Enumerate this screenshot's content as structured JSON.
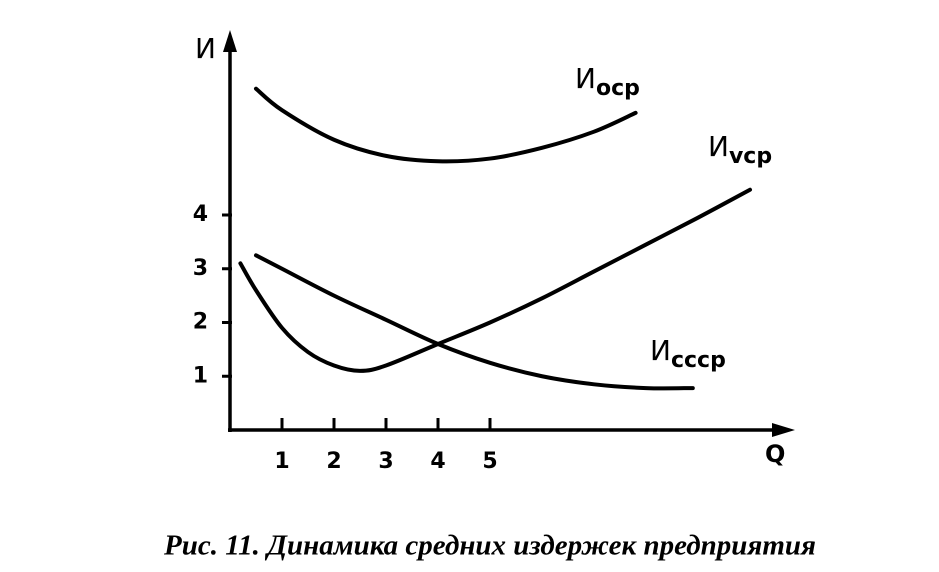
{
  "chart_data": {
    "type": "line",
    "caption": "Рис. 11. Динамика средних издержек предприятия",
    "y_label": "И",
    "x_label": "Q",
    "xlim": [
      0,
      10.8
    ],
    "ylim": [
      0,
      7.4
    ],
    "xticks": [
      1,
      2,
      3,
      4,
      5
    ],
    "yticks": [
      1,
      2,
      3,
      4
    ],
    "series": [
      {
        "name": "Иоср",
        "color": "#000000",
        "x": [
          0.5,
          1,
          2,
          3,
          4,
          5,
          6,
          7,
          7.8
        ],
        "values": [
          6.35,
          5.95,
          5.4,
          5.1,
          5.0,
          5.05,
          5.25,
          5.55,
          5.9
        ]
      },
      {
        "name": "Иvср",
        "color": "#000000",
        "x": [
          0.2,
          0.5,
          1,
          1.5,
          2,
          2.5,
          3,
          4,
          5,
          6,
          7,
          8,
          9,
          10
        ],
        "values": [
          3.1,
          2.6,
          1.9,
          1.45,
          1.2,
          1.1,
          1.2,
          1.6,
          2.0,
          2.45,
          2.95,
          3.45,
          3.95,
          4.47
        ]
      },
      {
        "name": "Иссср",
        "color": "#000000",
        "x": [
          0.5,
          1,
          2,
          3,
          4,
          5,
          6,
          7,
          8,
          8.9
        ],
        "values": [
          3.25,
          3.0,
          2.5,
          2.05,
          1.6,
          1.25,
          1.0,
          0.85,
          0.78,
          0.78
        ]
      }
    ]
  }
}
